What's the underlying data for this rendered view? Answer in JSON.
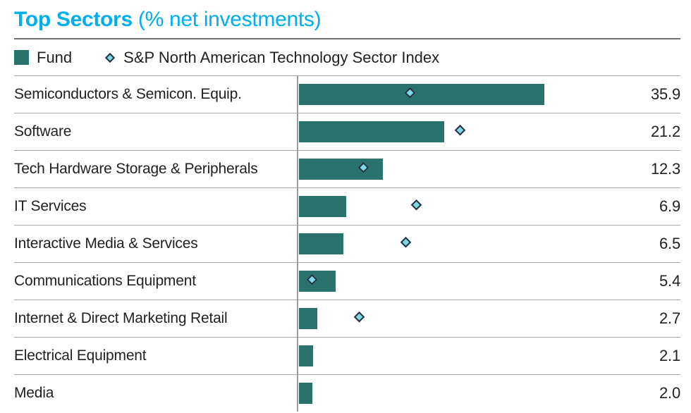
{
  "header": {
    "title_bold": "Top Sectors",
    "title_rest": " (% net investments)"
  },
  "legend": {
    "fund_label": "Fund",
    "index_label": "S&P North American Technology Sector Index"
  },
  "colors": {
    "title": "#00aeef",
    "fund_bar": "#2a736d",
    "index_diamond_fill": "#7fd8e5",
    "index_diamond_border": "#243240",
    "text": "#231f20",
    "row_divider": "#a7a9ac",
    "axis_line": "#9a9c9e"
  },
  "chart_data": {
    "type": "bar",
    "orientation": "horizontal",
    "title": "Top Sectors (% net investments)",
    "xlabel": "",
    "ylabel": "",
    "unit": "%",
    "grid": false,
    "legend_position": "top",
    "xlim": [
      0,
      46
    ],
    "categories": [
      "Semiconductors & Semicon. Equip.",
      "Software",
      "Tech Hardware Storage & Peripherals",
      "IT Services",
      "Interactive Media & Services",
      "Communications Equipment",
      "Internet & Direct Marketing Retail",
      "Electrical Equipment",
      "Media"
    ],
    "series": [
      {
        "name": "Fund",
        "marker": "bar",
        "values": [
          35.9,
          21.2,
          12.3,
          6.9,
          6.5,
          5.4,
          2.7,
          2.1,
          2.0
        ]
      },
      {
        "name": "S&P North American Technology Sector Index",
        "marker": "diamond",
        "values": [
          16.7,
          24.0,
          9.9,
          17.6,
          16.1,
          2.4,
          9.3,
          null,
          null
        ]
      }
    ],
    "value_labels": [
      "35.9",
      "21.2",
      "12.3",
      "6.9",
      "6.5",
      "5.4",
      "2.7",
      "2.1",
      "2.0"
    ]
  }
}
